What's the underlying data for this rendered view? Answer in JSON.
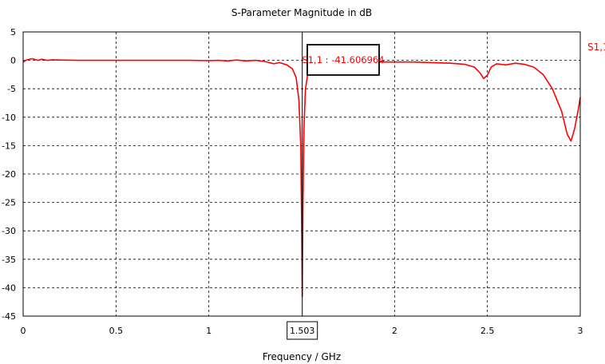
{
  "colors": {
    "series": "#ff0000",
    "axis": "#000000",
    "grid": "#000000",
    "background": "#ffffff",
    "text": "#000000"
  },
  "chart_data": {
    "type": "line",
    "title": "S-Parameter Magnitude in dB",
    "xlabel": "Frequency / GHz",
    "ylabel": "",
    "xlim": [
      0,
      3
    ],
    "ylim": [
      -45,
      5
    ],
    "x_ticks": [
      0,
      0.5,
      1,
      2,
      2.5,
      3
    ],
    "x_tick_labels": [
      "0",
      "0.5",
      "1",
      "2",
      "2.5",
      "3"
    ],
    "y_ticks": [
      5,
      0,
      -5,
      -10,
      -15,
      -20,
      -25,
      -30,
      -35,
      -40,
      -45
    ],
    "y_tick_labels": [
      "5",
      "0",
      "-5",
      "-10",
      "-15",
      "-20",
      "-25",
      "-30",
      "-35",
      "-40",
      "-45"
    ],
    "grid": true,
    "legend_position": "right",
    "series": [
      {
        "name": "S1,1",
        "color": "#ff0000",
        "points": [
          [
            0,
            -0.3
          ],
          [
            0.02,
            0.1
          ],
          [
            0.05,
            0.3
          ],
          [
            0.08,
            0.0
          ],
          [
            0.1,
            0.2
          ],
          [
            0.13,
            0.0
          ],
          [
            0.16,
            0.1
          ],
          [
            0.2,
            0.05
          ],
          [
            0.3,
            0.0
          ],
          [
            0.5,
            0.0
          ],
          [
            0.7,
            0.0
          ],
          [
            0.9,
            0.0
          ],
          [
            1.0,
            -0.05
          ],
          [
            1.05,
            0.0
          ],
          [
            1.1,
            -0.1
          ],
          [
            1.15,
            0.05
          ],
          [
            1.2,
            -0.1
          ],
          [
            1.25,
            0.0
          ],
          [
            1.3,
            -0.2
          ],
          [
            1.35,
            -0.6
          ],
          [
            1.38,
            -0.4
          ],
          [
            1.42,
            -0.8
          ],
          [
            1.45,
            -1.5
          ],
          [
            1.47,
            -3.0
          ],
          [
            1.485,
            -7.0
          ],
          [
            1.495,
            -15.0
          ],
          [
            1.5,
            -30.0
          ],
          [
            1.503,
            -41.6
          ],
          [
            1.507,
            -25.0
          ],
          [
            1.512,
            -12.0
          ],
          [
            1.52,
            -5.0
          ],
          [
            1.535,
            -2.0
          ],
          [
            1.55,
            -1.0
          ],
          [
            1.6,
            -0.6
          ],
          [
            1.7,
            -0.3
          ],
          [
            1.8,
            -0.2
          ],
          [
            1.9,
            -0.3
          ],
          [
            2.0,
            -0.3
          ],
          [
            2.1,
            -0.3
          ],
          [
            2.2,
            -0.4
          ],
          [
            2.3,
            -0.5
          ],
          [
            2.38,
            -0.7
          ],
          [
            2.43,
            -1.2
          ],
          [
            2.46,
            -2.2
          ],
          [
            2.48,
            -3.2
          ],
          [
            2.5,
            -2.6
          ],
          [
            2.52,
            -1.2
          ],
          [
            2.55,
            -0.6
          ],
          [
            2.6,
            -0.8
          ],
          [
            2.65,
            -0.5
          ],
          [
            2.7,
            -0.7
          ],
          [
            2.75,
            -1.2
          ],
          [
            2.8,
            -2.5
          ],
          [
            2.85,
            -5.0
          ],
          [
            2.9,
            -9.0
          ],
          [
            2.93,
            -13.0
          ],
          [
            2.95,
            -14.2
          ],
          [
            2.97,
            -12.0
          ],
          [
            2.99,
            -8.5
          ],
          [
            3.0,
            -6.5
          ]
        ]
      }
    ],
    "marker": {
      "x": 1.503,
      "x_label": "1.503",
      "label": "S1,1 : -41.606964"
    }
  }
}
